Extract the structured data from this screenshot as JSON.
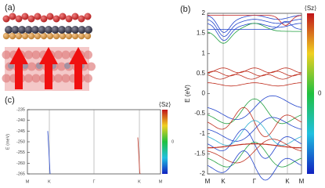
{
  "panels": {
    "a": {
      "label": "(a)"
    },
    "b": {
      "label": "(b)",
      "y_label": "E (eV)",
      "colorbar_label": "⟨Sz⟩",
      "colorbar_tick": "0",
      "ylim": [
        -2,
        2
      ],
      "yticks": [
        2,
        1.5,
        1,
        0.5,
        0,
        -0.5,
        -1,
        -1.5,
        -2
      ],
      "x_labels": [
        "M",
        "K",
        "Γ",
        "K",
        "M"
      ]
    },
    "c": {
      "label": "(c)",
      "y_label": "E (meV)",
      "colorbar_label": "⟨Sz⟩",
      "colorbar_tick": "0",
      "ylim": [
        -265,
        -235
      ],
      "yticks": [
        -235,
        -240,
        -245,
        -250,
        -255,
        -260,
        -265
      ],
      "x_labels": [
        "M",
        "K",
        "Γ",
        "K",
        "M"
      ]
    }
  }
}
